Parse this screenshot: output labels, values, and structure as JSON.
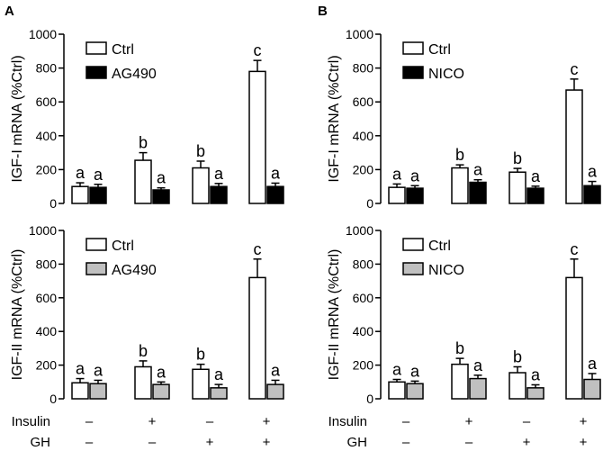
{
  "figure": {
    "panel_letters": [
      "A",
      "B"
    ],
    "conditions": {
      "rows": [
        {
          "name": "Insulin",
          "signs": [
            "–",
            "+",
            "–",
            "+"
          ]
        },
        {
          "name": "GH",
          "signs": [
            "–",
            "–",
            "+",
            "+"
          ]
        }
      ]
    }
  },
  "colors": {
    "ctrl_fill": "#ffffff",
    "ag490_igf1_fill": "#000000",
    "nico_igf1_fill": "#000000",
    "treat_igf2_fill": "#c0c0c0",
    "stroke": "#000000"
  },
  "chart_data": [
    {
      "id": "A-top",
      "type": "bar",
      "panel": "A",
      "ylabel": "IGF-I mRNA  (%Ctrl)",
      "ylim": [
        0,
        1000
      ],
      "yticks": [
        0,
        200,
        400,
        600,
        800,
        1000
      ],
      "ytick_labels": [
        "0",
        "200",
        "400",
        "600",
        "800",
        "1000"
      ],
      "categories": [
        "Insulin – / GH –",
        "Insulin + / GH –",
        "Insulin – / GH +",
        "Insulin + / GH +"
      ],
      "series": [
        {
          "name": "Ctrl",
          "fill": "#ffffff",
          "values": [
            100,
            255,
            210,
            780
          ],
          "errors": [
            22,
            45,
            40,
            65
          ],
          "labels": [
            "a",
            "b",
            "b",
            "c"
          ]
        },
        {
          "name": "AG490",
          "fill": "#000000",
          "values": [
            95,
            80,
            100,
            100
          ],
          "errors": [
            18,
            12,
            18,
            20
          ],
          "labels": [
            "a",
            "a",
            "a",
            "a"
          ]
        }
      ],
      "legend": [
        "Ctrl",
        "AG490"
      ]
    },
    {
      "id": "B-top",
      "type": "bar",
      "panel": "B",
      "ylabel": "IGF-I mRNA  (%Ctrl)",
      "ylim": [
        0,
        1000
      ],
      "yticks": [
        0,
        200,
        400,
        600,
        800,
        1000
      ],
      "ytick_labels": [
        "0",
        "200",
        "400",
        "600",
        "800",
        "1000"
      ],
      "categories": [
        "Insulin – / GH –",
        "Insulin + / GH –",
        "Insulin – / GH +",
        "Insulin + / GH +"
      ],
      "series": [
        {
          "name": "Ctrl",
          "fill": "#ffffff",
          "values": [
            95,
            210,
            185,
            670
          ],
          "errors": [
            20,
            18,
            22,
            65
          ],
          "labels": [
            "a",
            "b",
            "b",
            "c"
          ]
        },
        {
          "name": "NICO",
          "fill": "#000000",
          "values": [
            90,
            125,
            90,
            105
          ],
          "errors": [
            15,
            15,
            12,
            25
          ],
          "labels": [
            "a",
            "a",
            "a",
            "a"
          ]
        }
      ],
      "legend": [
        "Ctrl",
        "NICO"
      ]
    },
    {
      "id": "A-bottom",
      "type": "bar",
      "panel": "A",
      "ylabel": "IGF-II mRNA  (%Ctrl)",
      "ylim": [
        0,
        1000
      ],
      "yticks": [
        0,
        200,
        400,
        600,
        800,
        1000
      ],
      "ytick_labels": [
        "0",
        "200",
        "400",
        "600",
        "800",
        "1000"
      ],
      "categories": [
        "Insulin – / GH –",
        "Insulin + / GH –",
        "Insulin – / GH +",
        "Insulin + / GH +"
      ],
      "series": [
        {
          "name": "Ctrl",
          "fill": "#ffffff",
          "values": [
            95,
            190,
            175,
            720
          ],
          "errors": [
            25,
            35,
            30,
            110
          ],
          "labels": [
            "a",
            "b",
            "b",
            "c"
          ]
        },
        {
          "name": "AG490",
          "fill": "#c0c0c0",
          "values": [
            90,
            85,
            65,
            85
          ],
          "errors": [
            20,
            15,
            20,
            25
          ],
          "labels": [
            "a",
            "a",
            "a",
            "a"
          ]
        }
      ],
      "legend": [
        "Ctrl",
        "AG490"
      ]
    },
    {
      "id": "B-bottom",
      "type": "bar",
      "panel": "B",
      "ylabel": "IGF-II mRNA  (%Ctrl)",
      "ylim": [
        0,
        1000
      ],
      "yticks": [
        0,
        200,
        400,
        600,
        800,
        1000
      ],
      "ytick_labels": [
        "0",
        "200",
        "400",
        "600",
        "800",
        "1000"
      ],
      "categories": [
        "Insulin – / GH –",
        "Insulin + / GH –",
        "Insulin – / GH +",
        "Insulin + / GH +"
      ],
      "series": [
        {
          "name": "Ctrl",
          "fill": "#ffffff",
          "values": [
            100,
            205,
            155,
            720
          ],
          "errors": [
            15,
            35,
            35,
            110
          ],
          "labels": [
            "a",
            "b",
            "b",
            "c"
          ]
        },
        {
          "name": "NICO",
          "fill": "#c0c0c0",
          "values": [
            90,
            120,
            65,
            115
          ],
          "errors": [
            15,
            20,
            18,
            35
          ],
          "labels": [
            "a",
            "a",
            "a",
            "a"
          ]
        }
      ],
      "legend": [
        "Ctrl",
        "NICO"
      ]
    }
  ]
}
